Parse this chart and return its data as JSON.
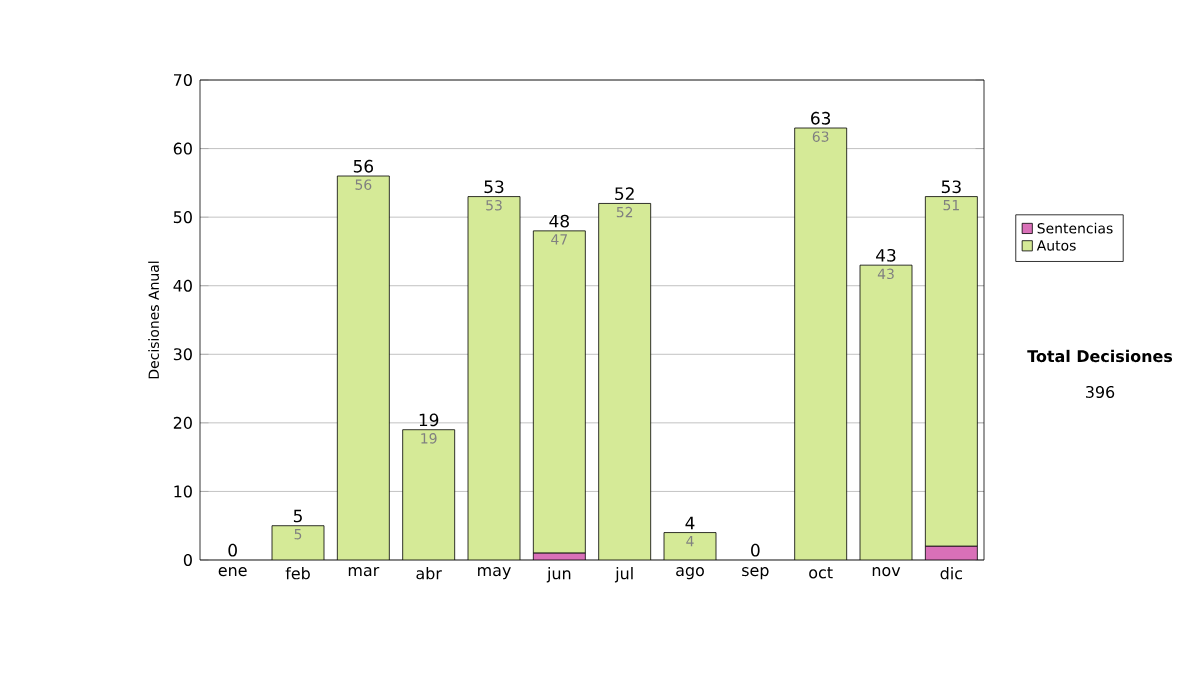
{
  "chart_data": {
    "type": "bar",
    "stacked": true,
    "ylabel": "Decisiones Anual",
    "categories": [
      "ene",
      "feb",
      "mar",
      "abr",
      "may",
      "jun",
      "jul",
      "ago",
      "sep",
      "oct",
      "nov",
      "dic"
    ],
    "series": [
      {
        "name": "Sentencias",
        "color": "#d970b8",
        "values": [
          0,
          0,
          0,
          0,
          0,
          1,
          0,
          0,
          0,
          0,
          0,
          2
        ]
      },
      {
        "name": "Autos",
        "color": "#d5ea97",
        "values": [
          0,
          5,
          56,
          19,
          53,
          47,
          52,
          4,
          0,
          63,
          43,
          51
        ],
        "value_labels": [
          null,
          "5",
          "56",
          "19",
          "53",
          "47",
          "52",
          "4",
          null,
          "63",
          "43",
          "51"
        ]
      }
    ],
    "totals": [
      "0",
      "5",
      "56",
      "19",
      "53",
      "48",
      "52",
      "4",
      "0",
      "63",
      "43",
      "53"
    ],
    "ylim": [
      0,
      70
    ],
    "yticks": [
      0,
      10,
      20,
      30,
      40,
      50,
      60,
      70
    ],
    "grid": "y",
    "legend": "right",
    "annotations": [
      "Total Decisiones",
      "396"
    ]
  }
}
